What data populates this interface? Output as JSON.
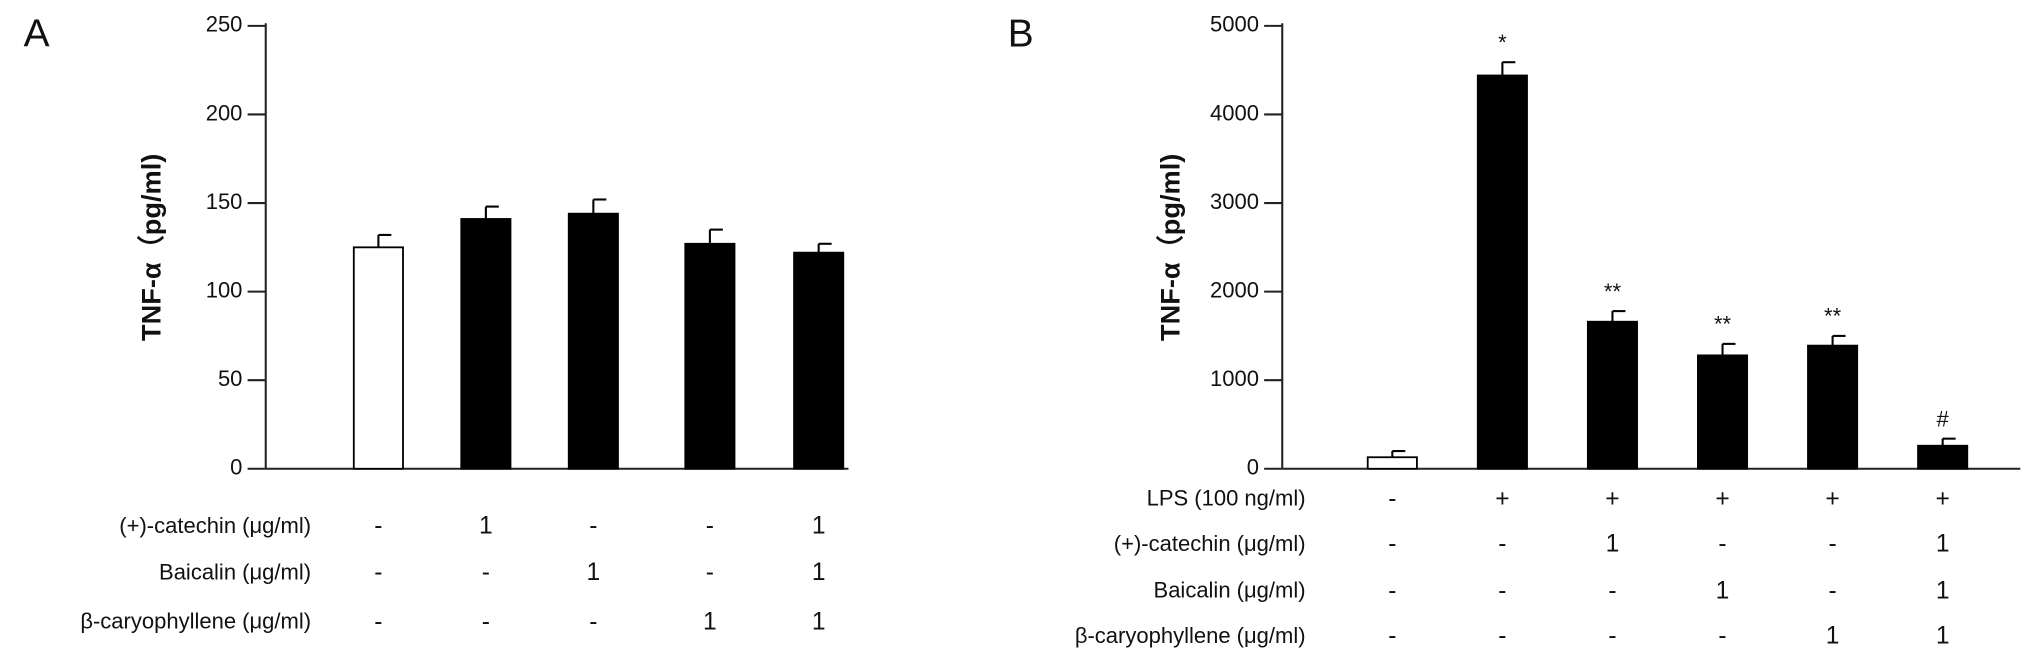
{
  "chart_data": [
    {
      "type": "bar",
      "label": "A",
      "ylabel": "TNF-α（pg/ml)",
      "ylim": [
        0,
        250
      ],
      "yticks": [
        0,
        50,
        100,
        150,
        200,
        250
      ],
      "values": [
        125,
        141,
        144,
        127,
        122
      ],
      "errors": [
        7,
        7,
        8,
        8,
        5
      ],
      "colors": [
        "#ffffff",
        "#000000",
        "#000000",
        "#000000",
        "#000000"
      ],
      "annotations": [
        null,
        null,
        null,
        null,
        null
      ],
      "conditions": [
        {
          "name": "(+)-catechin (μg/ml)",
          "values": [
            "-",
            "1",
            "-",
            "-",
            "1"
          ]
        },
        {
          "name": "Baicalin (μg/ml)",
          "values": [
            "-",
            "-",
            "1",
            "-",
            "1"
          ]
        },
        {
          "name": "β-caryophyllene (μg/ml)",
          "values": [
            "-",
            "-",
            "-",
            "1",
            "1"
          ]
        }
      ]
    },
    {
      "type": "bar",
      "label": "B",
      "ylabel": "TNF-α（pg/ml)",
      "ylim": [
        0,
        5000
      ],
      "yticks": [
        0,
        1000,
        2000,
        3000,
        4000,
        5000
      ],
      "values": [
        130,
        4440,
        1660,
        1280,
        1390,
        260
      ],
      "errors": [
        70,
        150,
        120,
        130,
        110,
        80
      ],
      "colors": [
        "#ffffff",
        "#000000",
        "#000000",
        "#000000",
        "#000000",
        "#000000"
      ],
      "annotations": [
        null,
        "*",
        "**",
        "**",
        "**",
        "#"
      ],
      "conditions": [
        {
          "name": "LPS (100 ng/ml)",
          "values": [
            "-",
            "+",
            "+",
            "+",
            "+",
            "+"
          ]
        },
        {
          "name": "(+)-catechin (μg/ml)",
          "values": [
            "-",
            "-",
            "1",
            "-",
            "-",
            "1"
          ]
        },
        {
          "name": "Baicalin (μg/ml)",
          "values": [
            "-",
            "-",
            "-",
            "1",
            "-",
            "1"
          ]
        },
        {
          "name": "β-caryophyllene (μg/ml)",
          "values": [
            "-",
            "-",
            "-",
            "-",
            "1",
            "1"
          ]
        }
      ]
    }
  ]
}
